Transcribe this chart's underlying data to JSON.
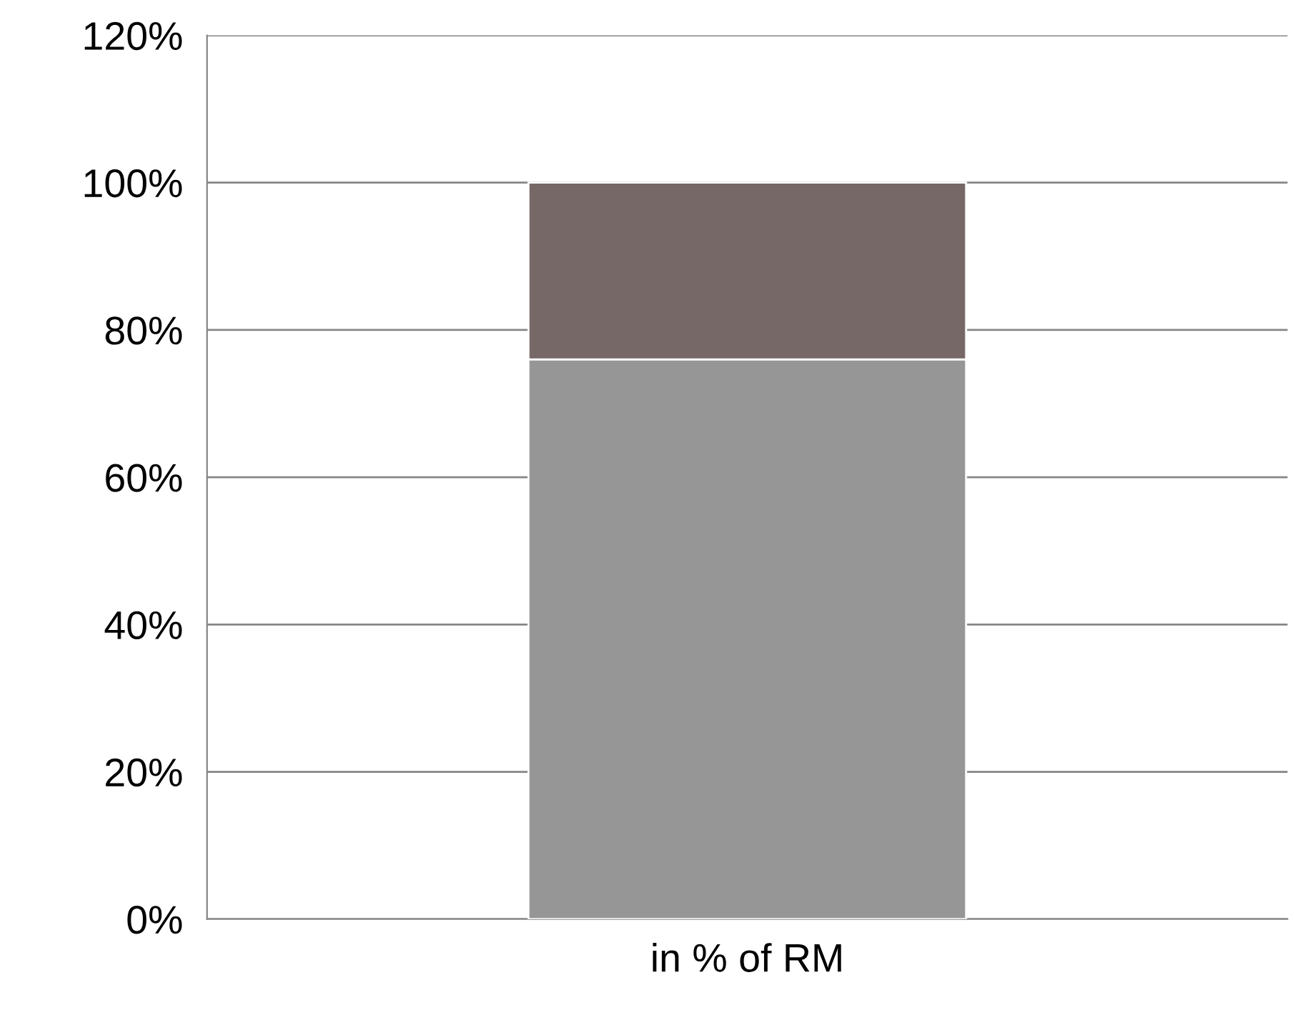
{
  "chart_data": {
    "type": "bar",
    "stacked": true,
    "categories": [
      "in % of RM"
    ],
    "series": [
      {
        "color": "#969696",
        "values": [
          76
        ]
      },
      {
        "color": "#756866",
        "values": [
          24
        ]
      }
    ],
    "ylim": [
      0,
      120
    ],
    "yticks": [
      {
        "value": 0,
        "label": "0%"
      },
      {
        "value": 20,
        "label": "20%"
      },
      {
        "value": 40,
        "label": "40%"
      },
      {
        "value": 60,
        "label": "60%"
      },
      {
        "value": 80,
        "label": "80%"
      },
      {
        "value": 100,
        "label": "100%"
      },
      {
        "value": 120,
        "label": "120%"
      }
    ],
    "grid": "y",
    "legend": false
  }
}
